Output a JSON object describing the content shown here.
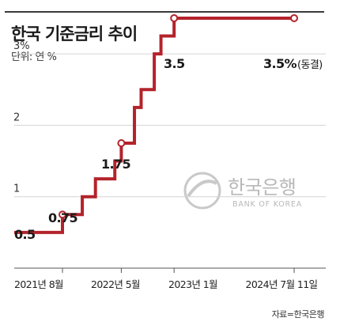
{
  "header": {
    "title": "한국 기준금리 추이",
    "unit": "단위: 연 %"
  },
  "source": "자료=한국은행",
  "watermark": {
    "name": "한국은행",
    "sub": "BANK OF KOREA"
  },
  "colors": {
    "line": "#b4232b",
    "grid": "#d4d4d4",
    "axis": "#555555",
    "marker_fill": "#ffffff"
  },
  "chart_data": {
    "type": "line",
    "step": true,
    "ylim": [
      0,
      3.7
    ],
    "yticks": [
      {
        "value": 1,
        "label": "1"
      },
      {
        "value": 2,
        "label": "2"
      },
      {
        "value": 3,
        "label": "3%"
      }
    ],
    "xticks": [
      "2021년 8월",
      "2022년 5월",
      "2023년 1월",
      "2024년 7월 11일"
    ],
    "series": [
      {
        "points": [
          {
            "date": "2020-05",
            "value": 0.5
          },
          {
            "date": "2021-08",
            "value": 0.75
          },
          {
            "date": "2021-11",
            "value": 1.0
          },
          {
            "date": "2022-01",
            "value": 1.25
          },
          {
            "date": "2022-04",
            "value": 1.5
          },
          {
            "date": "2022-05",
            "value": 1.75
          },
          {
            "date": "2022-07",
            "value": 2.25
          },
          {
            "date": "2022-08",
            "value": 2.5
          },
          {
            "date": "2022-10",
            "value": 3.0
          },
          {
            "date": "2022-11",
            "value": 3.25
          },
          {
            "date": "2023-01",
            "value": 3.5
          },
          {
            "date": "2024-07-11",
            "value": 3.5
          }
        ]
      }
    ],
    "labels": [
      {
        "text": "0.5"
      },
      {
        "text": "0.75"
      },
      {
        "text": "1.75"
      },
      {
        "text": "3.5"
      },
      {
        "text": "3.5%",
        "note": "(동결)"
      }
    ]
  }
}
